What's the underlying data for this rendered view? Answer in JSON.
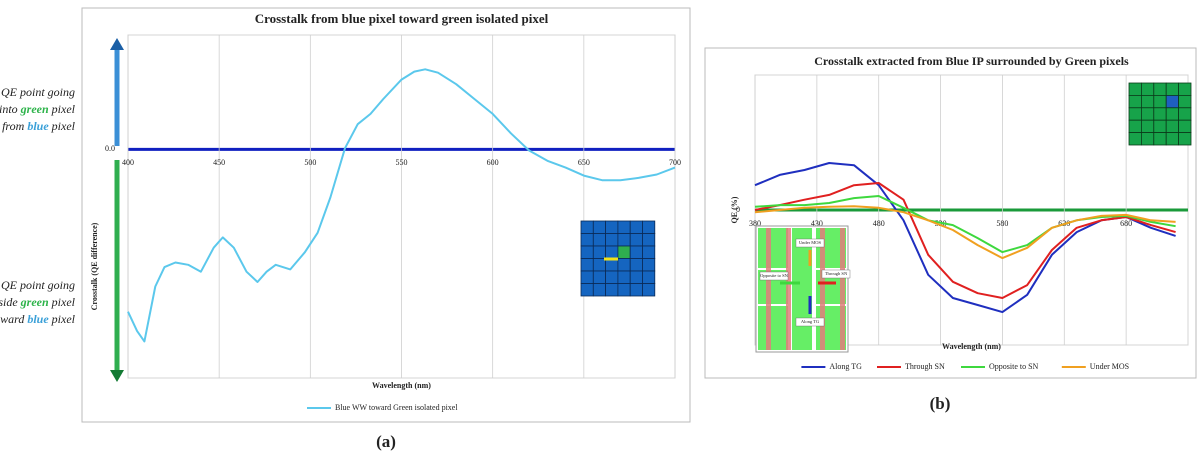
{
  "chart_data": [
    {
      "type": "line",
      "title": "Crosstalk from blue pixel toward green isolated pixel",
      "xlabel": "Wavelength (nm)",
      "ylabel": "Crosstalk (QE difference)",
      "x": [
        400,
        405,
        409,
        415,
        420,
        426,
        433,
        440,
        447,
        452,
        458,
        465,
        471,
        476,
        481,
        489,
        497,
        504,
        511,
        519,
        526,
        533,
        540,
        550,
        557,
        563,
        570,
        580,
        590,
        600,
        610,
        620,
        630,
        640,
        650,
        660,
        670,
        680,
        690,
        700
      ],
      "series": [
        {
          "name": "Blue WW toward Green isolated pixel",
          "color": "#5bc8ec",
          "values": [
            -1.42,
            -1.59,
            -1.68,
            -1.2,
            -1.03,
            -0.99,
            -1.01,
            -1.07,
            -0.86,
            -0.77,
            -0.86,
            -1.07,
            -1.16,
            -1.07,
            -1.01,
            -1.05,
            -0.9,
            -0.73,
            -0.42,
            0.01,
            0.22,
            0.31,
            0.44,
            0.61,
            0.68,
            0.7,
            0.67,
            0.57,
            0.44,
            0.31,
            0.14,
            -0.01,
            -0.1,
            -0.16,
            -0.23,
            -0.27,
            -0.27,
            -0.25,
            -0.22,
            -0.16
          ]
        }
      ],
      "xlim": [
        400,
        700
      ],
      "xticks": [
        400,
        450,
        500,
        550,
        600,
        650,
        700
      ],
      "ylim": [
        -2,
        1
      ],
      "yticks": [
        {
          "value": 0,
          "label": "0.0"
        }
      ],
      "grid": true,
      "zero_line_color": "#1020c0",
      "legend": "bottom",
      "annotations": [
        [
          [
            {
              "text": "QE point going"
            }
          ],
          [
            {
              "text": "into "
            },
            {
              "text": "green",
              "color": "#2db34a"
            },
            {
              "text": " pixel"
            }
          ],
          [
            {
              "text": "from "
            },
            {
              "text": "blue",
              "color": "#3aa0d8"
            },
            {
              "text": " pixel"
            }
          ]
        ],
        [
          [
            {
              "text": "QE point going"
            }
          ],
          [
            {
              "text": "outside "
            },
            {
              "text": "green",
              "color": "#2db34a"
            },
            {
              "text": " pixel"
            }
          ],
          [
            {
              "text": "toward "
            },
            {
              "text": "blue",
              "color": "#3aa0d8"
            },
            {
              "text": " pixel"
            }
          ]
        ]
      ],
      "panel_label": "(a)"
    },
    {
      "type": "line",
      "title": "Crosstalk extracted from Blue IP surrounded by Green pixels",
      "xlabel": "Wavelength (nm)",
      "ylabel": "QE (%)",
      "x": [
        380,
        400,
        420,
        440,
        460,
        480,
        500,
        520,
        540,
        560,
        580,
        600,
        620,
        640,
        660,
        680,
        700,
        720
      ],
      "series": [
        {
          "name": "Along TG",
          "color": "#1f2fbf",
          "values": [
            0.46,
            0.65,
            0.74,
            0.87,
            0.83,
            0.46,
            -0.19,
            -1.2,
            -1.63,
            -1.76,
            -1.89,
            -1.57,
            -0.83,
            -0.41,
            -0.19,
            -0.13,
            -0.33,
            -0.48
          ]
        },
        {
          "name": "Through SN",
          "color": "#e02020",
          "values": [
            0,
            0.09,
            0.19,
            0.28,
            0.46,
            0.5,
            0.19,
            -0.83,
            -1.33,
            -1.54,
            -1.63,
            -1.39,
            -0.74,
            -0.33,
            -0.19,
            -0.13,
            -0.28,
            -0.41
          ]
        },
        {
          "name": "Opposite to SN",
          "color": "#3ed83e",
          "values": [
            0.06,
            0.09,
            0.09,
            0.13,
            0.22,
            0.26,
            0.04,
            -0.19,
            -0.28,
            -0.52,
            -0.78,
            -0.65,
            -0.33,
            -0.19,
            -0.13,
            -0.11,
            -0.22,
            -0.3
          ]
        },
        {
          "name": "Under MOS",
          "color": "#f0a020",
          "values": [
            -0.04,
            0,
            0.04,
            0.06,
            0.07,
            0.04,
            -0.04,
            -0.19,
            -0.37,
            -0.65,
            -0.89,
            -0.7,
            -0.33,
            -0.19,
            -0.11,
            -0.09,
            -0.19,
            -0.22
          ]
        }
      ],
      "xlim": [
        380,
        730
      ],
      "xticks": [
        380,
        430,
        480,
        530,
        580,
        630,
        680
      ],
      "ylim": [
        -2.5,
        2.5
      ],
      "yticks": [
        0
      ],
      "grid": true,
      "zero_line_color": "#1a9a3a",
      "legend": "bottom",
      "inset_labels": [
        "Under MOS",
        "Opposite to SN",
        "Through SN",
        "Along TG"
      ],
      "panel_label": "(b)"
    }
  ]
}
